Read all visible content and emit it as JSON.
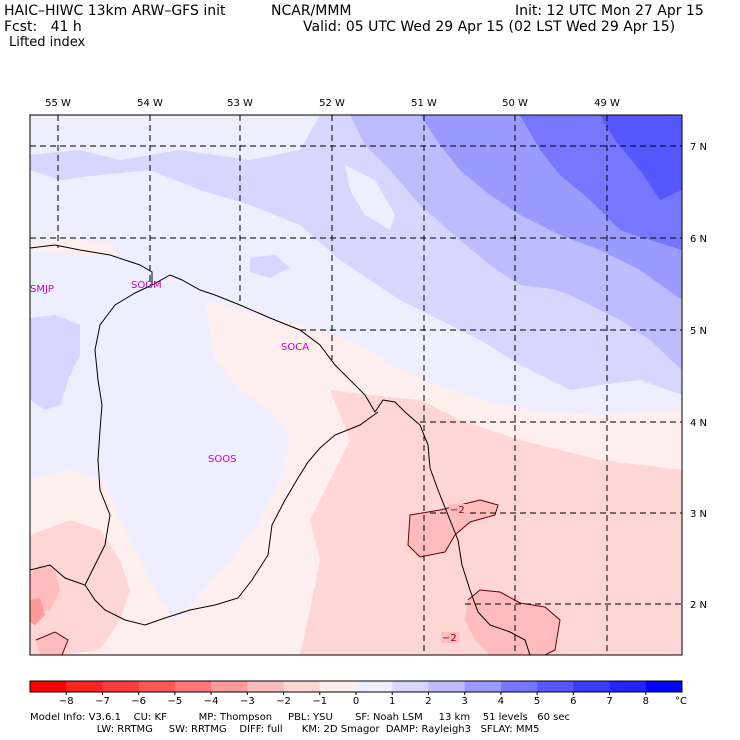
{
  "header": {
    "model_title": "HAIC–HIWC 13km ARW–GFS init",
    "org": "NCAR/MMM",
    "init": "Init: 12 UTC Mon 27 Apr 15",
    "fcst": "Fcst:   41 h",
    "valid": "Valid: 05 UTC Wed 29 Apr 15 (02 LST Wed 29 Apr 15)",
    "field": "Lifted index"
  },
  "map": {
    "lon_labels": [
      "55 W",
      "54 W",
      "53 W",
      "52 W",
      "51 W",
      "50 W",
      "49 W"
    ],
    "lat_labels": [
      "7 N",
      "6 N",
      "5 N",
      "4 N",
      "3 N",
      "2 N"
    ],
    "stations": [
      "SMJP",
      "SOGM",
      "SOCA",
      "SOOS"
    ],
    "contour_labels": [
      "−2",
      "−2"
    ]
  },
  "colorbar": {
    "unit": "°C",
    "ticks": [
      "−8",
      "−7",
      "−6",
      "−5",
      "−4",
      "−3",
      "−2",
      "−1",
      "0",
      "1",
      "2",
      "3",
      "4",
      "5",
      "6",
      "7",
      "8"
    ],
    "colors": [
      "#ff0000",
      "#ff2424",
      "#ff3b3b",
      "#ff5757",
      "#ff7676",
      "#ff9a9a",
      "#ffbcbc",
      "#ffd6d6",
      "#ffeeee",
      "#eeeeff",
      "#d6d6ff",
      "#bcbcff",
      "#9a9aff",
      "#7676ff",
      "#5757ff",
      "#3b3bff",
      "#2424ff",
      "#0000ff"
    ]
  },
  "footer": {
    "line1": "Model Info: V3.6.1    CU: KF          MP: Thompson     PBL: YSU       SF: Noah LSM     13 km    51 levels   60 sec",
    "line2": "                     LW: RRTMG     SW: RRTMG    DIFF: full      KM: 2D Smagor  DAMP: Rayleigh3   SFLAY: MM5"
  }
}
